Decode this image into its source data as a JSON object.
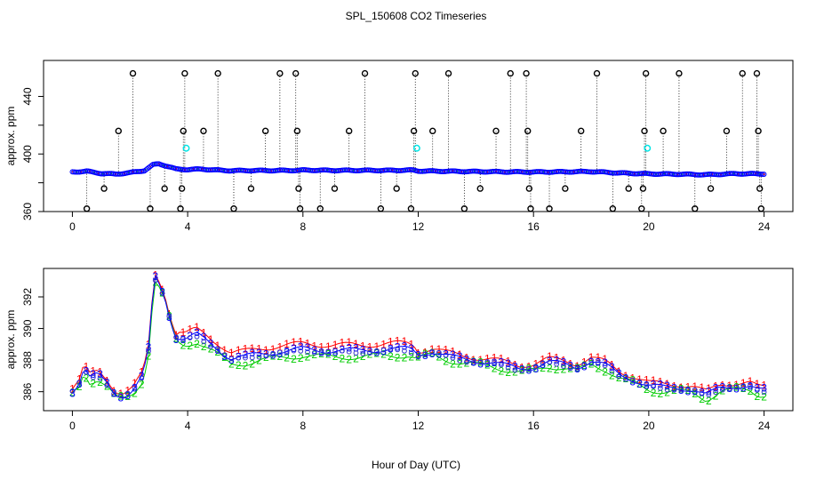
{
  "figure": {
    "title": "SPL_150608  CO2 Timeseries",
    "xlabel": "Hour of Day (UTC)",
    "colors": {
      "axis": "#000000",
      "series1": "#ff0000",
      "series2": "#00cc00",
      "series3": "#0000ff",
      "average": "#00e5e5",
      "spike": "#000000"
    }
  },
  "chart_data": [
    {
      "type": "scatter",
      "panel": "top",
      "ylabel": "approx. ppm",
      "xlim": [
        -1,
        25
      ],
      "ylim": [
        360,
        465
      ],
      "xticks": [
        0,
        4,
        8,
        12,
        16,
        20,
        24
      ],
      "xtick_labels": [
        "0",
        "4",
        "8",
        "12",
        "16",
        "20",
        "24"
      ],
      "yticks": [
        360,
        380,
        400,
        420,
        440
      ],
      "ytick_labels": [
        "360",
        "",
        "400",
        "",
        "440"
      ],
      "baseline": [
        [
          0.0,
          387.5
        ],
        [
          0.5,
          388.0
        ],
        [
          1.0,
          386.5
        ],
        [
          1.5,
          386.0
        ],
        [
          2.0,
          387.0
        ],
        [
          2.5,
          388.5
        ],
        [
          2.8,
          392.5
        ],
        [
          3.0,
          393.2
        ],
        [
          3.3,
          391.5
        ],
        [
          3.6,
          389.5
        ],
        [
          4.0,
          389.2
        ],
        [
          4.5,
          389.5
        ],
        [
          5.0,
          388.8
        ],
        [
          5.5,
          388.4
        ],
        [
          6.0,
          388.5
        ],
        [
          7.0,
          388.5
        ],
        [
          7.8,
          388.6
        ],
        [
          8.0,
          388.8
        ],
        [
          9.0,
          388.6
        ],
        [
          10.0,
          388.6
        ],
        [
          11.0,
          388.6
        ],
        [
          11.8,
          388.8
        ],
        [
          12.0,
          388.2
        ],
        [
          13.0,
          388.0
        ],
        [
          14.0,
          387.8
        ],
        [
          15.0,
          387.6
        ],
        [
          16.0,
          387.5
        ],
        [
          17.0,
          387.6
        ],
        [
          18.0,
          387.8
        ],
        [
          19.0,
          386.8
        ],
        [
          20.0,
          386.2
        ],
        [
          21.0,
          386.0
        ],
        [
          22.0,
          385.6
        ],
        [
          23.0,
          386.3
        ],
        [
          23.8,
          386.2
        ]
      ],
      "spikes": [
        [
          0.5,
          362
        ],
        [
          1.1,
          376
        ],
        [
          1.6,
          416
        ],
        [
          2.1,
          456
        ],
        [
          2.7,
          362
        ],
        [
          3.2,
          376
        ],
        [
          3.75,
          362
        ],
        [
          3.8,
          376
        ],
        [
          3.85,
          416
        ],
        [
          3.9,
          456
        ],
        [
          4.55,
          416
        ],
        [
          5.05,
          456
        ],
        [
          5.6,
          362
        ],
        [
          6.2,
          376
        ],
        [
          6.7,
          416
        ],
        [
          7.2,
          456
        ],
        [
          7.75,
          456
        ],
        [
          7.8,
          416
        ],
        [
          7.85,
          376
        ],
        [
          7.9,
          362
        ],
        [
          8.6,
          362
        ],
        [
          9.1,
          376
        ],
        [
          9.6,
          416
        ],
        [
          10.15,
          456
        ],
        [
          10.7,
          362
        ],
        [
          11.25,
          376
        ],
        [
          11.75,
          362
        ],
        [
          11.85,
          416
        ],
        [
          11.9,
          456
        ],
        [
          12.5,
          416
        ],
        [
          13.05,
          456
        ],
        [
          13.6,
          362
        ],
        [
          14.15,
          376
        ],
        [
          14.7,
          416
        ],
        [
          15.2,
          456
        ],
        [
          15.75,
          456
        ],
        [
          15.8,
          416
        ],
        [
          15.85,
          376
        ],
        [
          15.9,
          362
        ],
        [
          16.55,
          362
        ],
        [
          17.1,
          376
        ],
        [
          17.65,
          416
        ],
        [
          18.2,
          456
        ],
        [
          18.75,
          362
        ],
        [
          19.3,
          376
        ],
        [
          19.75,
          362
        ],
        [
          19.8,
          376
        ],
        [
          19.85,
          416
        ],
        [
          19.9,
          456
        ],
        [
          20.5,
          416
        ],
        [
          21.05,
          456
        ],
        [
          21.6,
          362
        ],
        [
          22.15,
          376
        ],
        [
          22.7,
          416
        ],
        [
          23.25,
          456
        ],
        [
          23.75,
          456
        ],
        [
          23.8,
          416
        ],
        [
          23.85,
          376
        ],
        [
          23.9,
          362
        ]
      ],
      "averages": [
        [
          3.95,
          404
        ],
        [
          11.95,
          404
        ],
        [
          19.95,
          404
        ]
      ]
    },
    {
      "type": "scatter",
      "panel": "bottom",
      "ylabel": "approx. ppm",
      "xlim": [
        -1,
        25
      ],
      "ylim": [
        384.8,
        393.8
      ],
      "xticks": [
        0,
        4,
        8,
        12,
        16,
        20,
        24
      ],
      "xtick_labels": [
        "0",
        "4",
        "8",
        "12",
        "16",
        "20",
        "24"
      ],
      "yticks": [
        386,
        388,
        390,
        392
      ],
      "ytick_labels": [
        "386",
        "388",
        "390",
        "392"
      ],
      "series": [
        {
          "name": "1",
          "marker": "1",
          "offset": 0.45
        },
        {
          "name": "2",
          "marker": "2",
          "offset": -0.3
        },
        {
          "name": "3",
          "marker": "3",
          "offset": 0.1
        }
      ],
      "curve": [
        [
          0.0,
          386.0
        ],
        [
          0.25,
          386.5
        ],
        [
          0.4,
          387.4
        ],
        [
          0.6,
          386.8
        ],
        [
          0.9,
          387.0
        ],
        [
          1.2,
          386.5
        ],
        [
          1.5,
          385.8
        ],
        [
          1.8,
          385.7
        ],
        [
          2.1,
          386.0
        ],
        [
          2.4,
          386.8
        ],
        [
          2.6,
          388.0
        ],
        [
          2.7,
          389.5
        ],
        [
          2.8,
          392.5
        ],
        [
          2.9,
          393.3
        ],
        [
          3.0,
          392.8
        ],
        [
          3.2,
          392.0
        ],
        [
          3.4,
          390.5
        ],
        [
          3.6,
          389.4
        ],
        [
          3.9,
          389.2
        ],
        [
          4.3,
          389.5
        ],
        [
          4.6,
          389.2
        ],
        [
          5.0,
          388.7
        ],
        [
          5.5,
          388.0
        ],
        [
          6.0,
          388.1
        ],
        [
          6.5,
          388.3
        ],
        [
          7.0,
          388.4
        ],
        [
          7.6,
          388.5
        ],
        [
          8.0,
          388.6
        ],
        [
          9.0,
          388.5
        ],
        [
          10.0,
          388.5
        ],
        [
          11.0,
          388.6
        ],
        [
          11.7,
          388.6
        ],
        [
          12.0,
          388.3
        ],
        [
          12.5,
          388.5
        ],
        [
          13.0,
          388.2
        ],
        [
          13.5,
          388.0
        ],
        [
          14.0,
          387.9
        ],
        [
          14.5,
          387.8
        ],
        [
          15.0,
          387.6
        ],
        [
          15.5,
          387.4
        ],
        [
          16.0,
          387.5
        ],
        [
          16.5,
          387.8
        ],
        [
          17.0,
          387.7
        ],
        [
          17.5,
          387.5
        ],
        [
          18.0,
          387.9
        ],
        [
          18.5,
          387.6
        ],
        [
          19.0,
          387.0
        ],
        [
          19.5,
          386.7
        ],
        [
          20.0,
          386.3
        ],
        [
          20.5,
          386.2
        ],
        [
          21.0,
          386.2
        ],
        [
          21.5,
          386.1
        ],
        [
          22.0,
          385.7
        ],
        [
          22.5,
          386.2
        ],
        [
          23.0,
          386.3
        ],
        [
          23.5,
          386.3
        ],
        [
          23.8,
          386.0
        ]
      ]
    }
  ]
}
